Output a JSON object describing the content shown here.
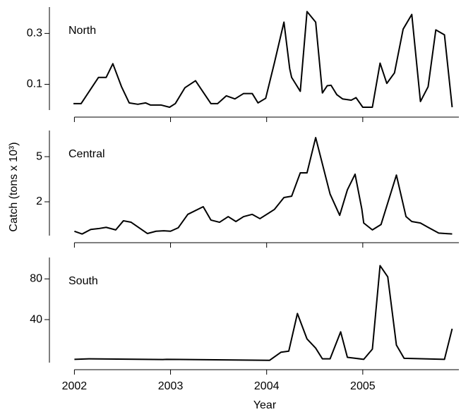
{
  "chart_data": [
    {
      "type": "line",
      "title": "North",
      "log": true,
      "color": "#000000",
      "xlim": [
        2001.74,
        2006
      ],
      "xticks": [
        2002,
        2003,
        2004,
        2005
      ],
      "ylim": [
        0.054,
        0.53
      ],
      "yticks": [
        0.1,
        0.3
      ],
      "x": [
        2001.99,
        2002.07,
        2002.25,
        2002.33,
        2002.4,
        2002.49,
        2002.57,
        2002.66,
        2002.74,
        2002.79,
        2002.9,
        2002.99,
        2003.05,
        2003.15,
        2003.26,
        2003.42,
        2003.49,
        2003.58,
        2003.67,
        2003.76,
        2003.85,
        2003.91,
        2003.99,
        2004.08,
        2004.18,
        2004.24,
        2004.26,
        2004.35,
        2004.42,
        2004.51,
        2004.58,
        2004.63,
        2004.67,
        2004.73,
        2004.79,
        2004.88,
        2004.93,
        2005.0,
        2005.1,
        2005.18,
        2005.25,
        2005.33,
        2005.42,
        2005.51,
        2005.6,
        2005.68,
        2005.76,
        2005.85,
        2005.93
      ],
      "values": [
        0.066,
        0.066,
        0.116,
        0.116,
        0.156,
        0.095,
        0.067,
        0.065,
        0.067,
        0.064,
        0.064,
        0.061,
        0.066,
        0.093,
        0.108,
        0.066,
        0.066,
        0.078,
        0.073,
        0.082,
        0.082,
        0.067,
        0.074,
        0.158,
        0.383,
        0.14,
        0.116,
        0.086,
        0.481,
        0.383,
        0.083,
        0.097,
        0.098,
        0.08,
        0.073,
        0.071,
        0.075,
        0.061,
        0.061,
        0.158,
        0.102,
        0.128,
        0.329,
        0.452,
        0.069,
        0.095,
        0.324,
        0.291,
        0.061
      ]
    },
    {
      "type": "line",
      "title": "Central",
      "log": true,
      "color": "#000000",
      "ylabel": "Catch (tons x 10³)",
      "xlim": [
        2001.74,
        2006
      ],
      "xticks": [
        2002,
        2003,
        2004,
        2005
      ],
      "ylim": [
        0.95,
        8.5
      ],
      "yticks": [
        2,
        5
      ],
      "x": [
        2002.0,
        2002.08,
        2002.17,
        2002.25,
        2002.33,
        2002.43,
        2002.51,
        2002.59,
        2002.76,
        2002.85,
        2002.93,
        2003.0,
        2003.08,
        2003.18,
        2003.34,
        2003.42,
        2003.51,
        2003.6,
        2003.68,
        2003.76,
        2003.85,
        2003.93,
        2004.08,
        2004.18,
        2004.26,
        2004.35,
        2004.42,
        2004.51,
        2004.66,
        2004.76,
        2004.84,
        2004.92,
        2004.99,
        2005.01,
        2005.1,
        2005.19,
        2005.35,
        2005.45,
        2005.51,
        2005.6,
        2005.68,
        2005.79,
        2005.93
      ],
      "values": [
        1.1,
        1.04,
        1.14,
        1.16,
        1.19,
        1.13,
        1.36,
        1.32,
        1.05,
        1.1,
        1.11,
        1.1,
        1.18,
        1.55,
        1.81,
        1.38,
        1.32,
        1.48,
        1.34,
        1.48,
        1.55,
        1.42,
        1.71,
        2.18,
        2.24,
        3.6,
        3.6,
        7.36,
        2.34,
        1.52,
        2.55,
        3.5,
        1.73,
        1.3,
        1.13,
        1.26,
        3.44,
        1.48,
        1.34,
        1.3,
        1.19,
        1.06,
        1.04
      ]
    },
    {
      "type": "line",
      "title": "South",
      "log": false,
      "color": "#000000",
      "xlabel": "Year",
      "xlim": [
        2001.74,
        2006
      ],
      "xticks": [
        2002,
        2003,
        2004,
        2005
      ],
      "ylim": [
        -5,
        101
      ],
      "yticks": [
        40,
        80
      ],
      "x": [
        2002.0,
        2002.15,
        2002.92,
        2002.96,
        2004.03,
        2004.15,
        2004.23,
        2004.32,
        2004.42,
        2004.51,
        2004.58,
        2004.66,
        2004.77,
        2004.84,
        2005.01,
        2005.1,
        2005.18,
        2005.26,
        2005.35,
        2005.43,
        2005.85,
        2005.93
      ],
      "values": [
        1,
        1.5,
        0.8,
        1,
        0,
        8,
        9,
        46,
        21,
        12,
        1.5,
        1.5,
        28,
        3,
        1,
        11,
        93,
        82,
        15,
        2,
        1,
        31
      ]
    }
  ]
}
